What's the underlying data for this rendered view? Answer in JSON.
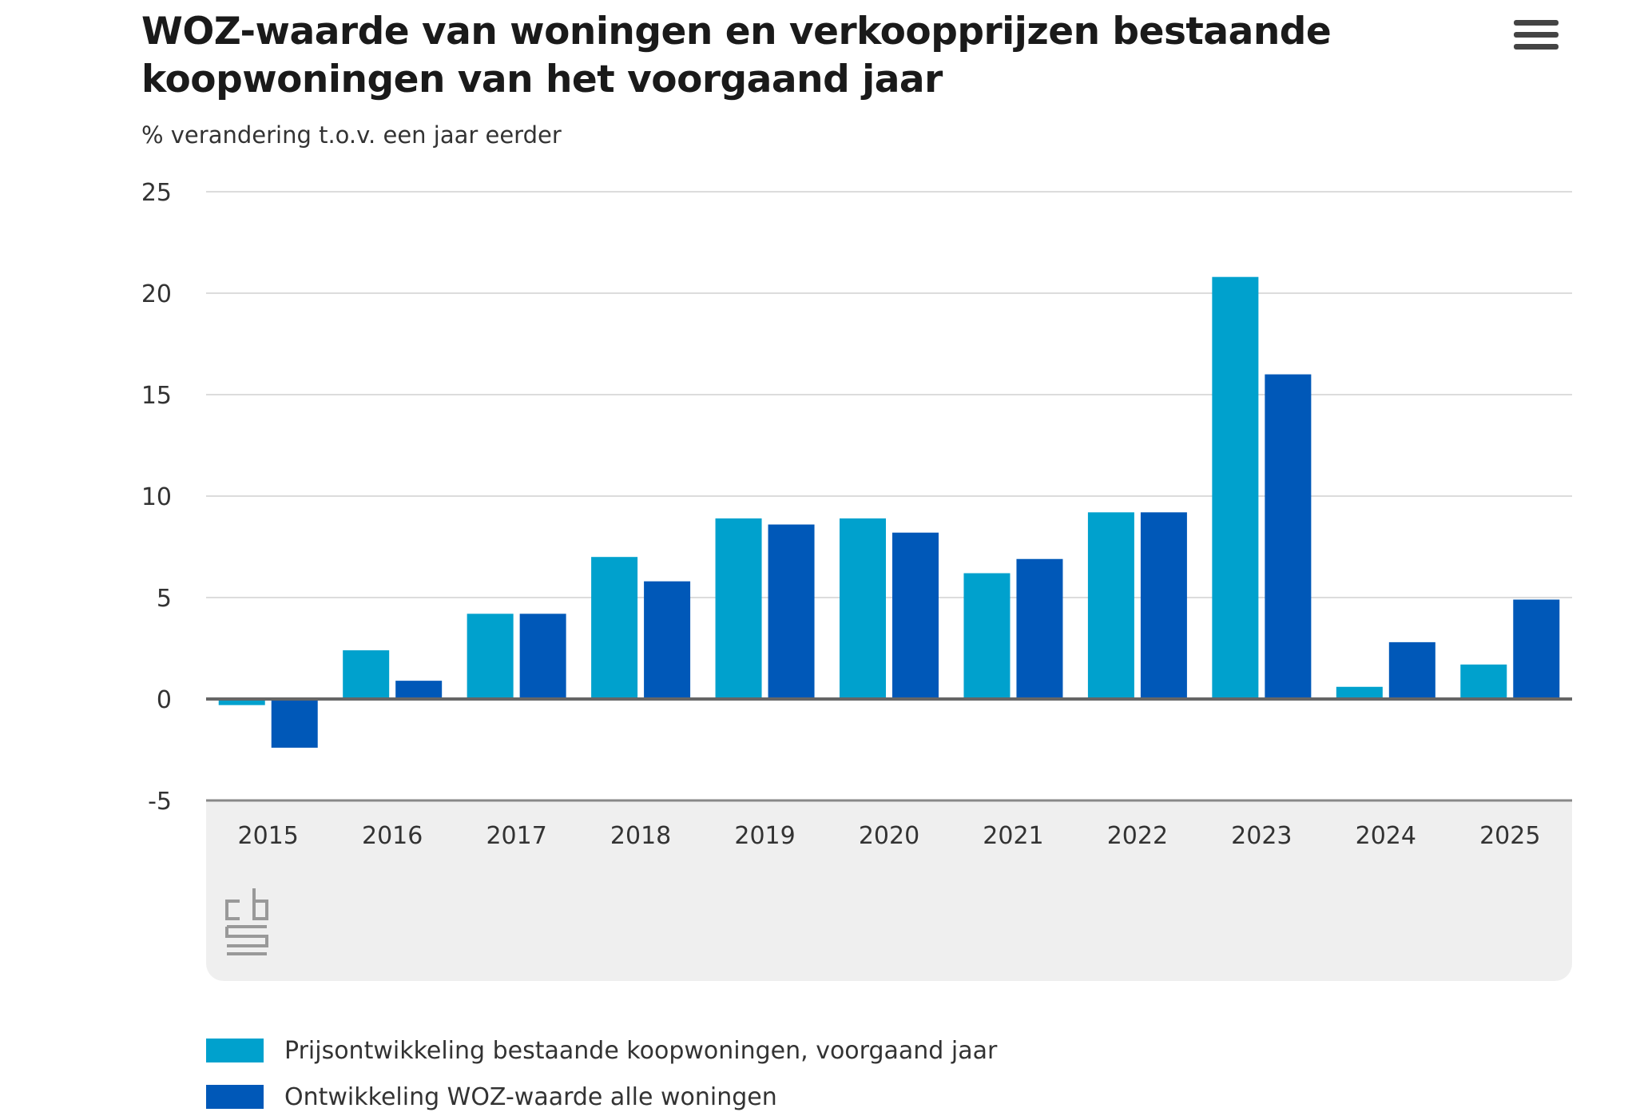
{
  "title": "WOZ-waarde van woningen en verkoopprijzen bestaande koopwoningen van het voorgaand jaar",
  "subtitle": "% verandering t.o.v. een jaar eerder",
  "menu_icon": "hamburger-menu-icon",
  "logo_icon": "cbs-logo-icon",
  "colors": {
    "series_light": "#00a1cd",
    "series_dark": "#0058b8",
    "grid": "#dcdcdc",
    "zero_line": "#666666",
    "axis_area": "#efefef",
    "logo": "#999999"
  },
  "chart_data": {
    "type": "bar",
    "title": "WOZ-waarde van woningen en verkoopprijzen bestaande koopwoningen van het voorgaand jaar",
    "ylabel": "% verandering t.o.v. een jaar eerder",
    "xlabel": "",
    "categories": [
      "2015",
      "2016",
      "2017",
      "2018",
      "2019",
      "2020",
      "2021",
      "2022",
      "2023",
      "2024",
      "2025"
    ],
    "series": [
      {
        "name": "Prijsontwikkeling bestaande koopwoningen, voorgaand jaar",
        "color": "#00a1cd",
        "values": [
          -0.3,
          2.4,
          4.2,
          7.0,
          8.9,
          8.9,
          6.2,
          9.2,
          20.8,
          0.6,
          1.7
        ]
      },
      {
        "name": "Ontwikkeling WOZ-waarde alle woningen",
        "color": "#0058b8",
        "values": [
          -2.4,
          0.9,
          4.2,
          5.8,
          8.6,
          8.2,
          6.9,
          9.2,
          16.0,
          2.8,
          4.9
        ]
      }
    ],
    "ylim": [
      -5,
      25
    ],
    "yticks": [
      -5,
      0,
      5,
      10,
      15,
      20,
      25
    ],
    "grid": true,
    "legend_position": "bottom-left"
  }
}
